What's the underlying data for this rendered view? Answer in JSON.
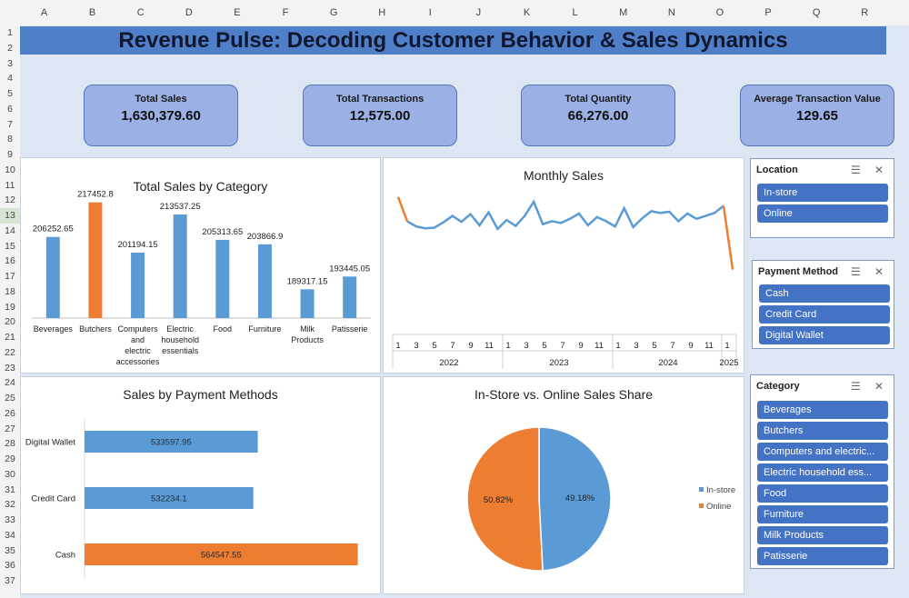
{
  "column_headers": [
    "A",
    "B",
    "C",
    "D",
    "E",
    "F",
    "G",
    "H",
    "I",
    "J",
    "K",
    "L",
    "M",
    "N",
    "O",
    "P",
    "Q",
    "R"
  ],
  "row_headers": [
    "1",
    "2",
    "3",
    "4",
    "5",
    "6",
    "7",
    "8",
    "9",
    "10",
    "11",
    "12",
    "13",
    "14",
    "15",
    "16",
    "17",
    "18",
    "19",
    "20",
    "21",
    "22",
    "23",
    "24",
    "25",
    "26",
    "27",
    "28",
    "29",
    "30",
    "31",
    "32",
    "33",
    "34",
    "35",
    "36",
    "37"
  ],
  "selected_row": "13",
  "dashboard_title": "Revenue Pulse: Decoding Customer Behavior & Sales Dynamics",
  "kpis": [
    {
      "label": "Total Sales",
      "value": "1,630,379.60"
    },
    {
      "label": "Total Transactions",
      "value": "12,575.00"
    },
    {
      "label": "Total Quantity",
      "value": "66,276.00"
    },
    {
      "label": "Average Transaction Value",
      "value": "129.65"
    }
  ],
  "colors": {
    "blue": "#5b9bd5",
    "orange": "#ed7d31",
    "slicer_button": "#4472c4",
    "banner": "#4f7fc8"
  },
  "chart_data": [
    {
      "type": "bar",
      "title": "Total Sales by Category",
      "categories": [
        [
          "Beverages"
        ],
        [
          "Butchers"
        ],
        [
          "Computers",
          "and",
          "electric",
          "accessories"
        ],
        [
          "Electric",
          "household",
          "essentials"
        ],
        [
          "Food"
        ],
        [
          "Furniture"
        ],
        [
          "Milk",
          "Products"
        ],
        [
          "Patisserie"
        ]
      ],
      "values": [
        206252.65,
        217452.8,
        201194.15,
        213537.25,
        205313.65,
        203866.9,
        189317.15,
        193445.05
      ],
      "value_labels": [
        "206252.65",
        "217452.8",
        "201194.15",
        "213537.25",
        "205313.65",
        "203866.9",
        "189317.15",
        "193445.05"
      ],
      "highlight_index": 1,
      "ylim": [
        180000,
        220000
      ]
    },
    {
      "type": "line",
      "title": "Monthly Sales",
      "x_tick_labels": [
        "1",
        "3",
        "5",
        "7",
        "9",
        "11",
        "1",
        "3",
        "5",
        "7",
        "9",
        "11",
        "1",
        "3",
        "5",
        "7",
        "9",
        "11",
        "1"
      ],
      "year_labels": [
        "2022",
        "2023",
        "2024",
        "2025"
      ],
      "values": [
        46500,
        42400,
        41500,
        41200,
        41300,
        42200,
        43300,
        42300,
        43600,
        41700,
        43900,
        41100,
        42600,
        41600,
        43300,
        45700,
        41900,
        42400,
        42100,
        42800,
        43700,
        41700,
        43100,
        42400,
        41500,
        44600,
        41400,
        42900,
        44100,
        43800,
        44000,
        42400,
        43700,
        42800,
        43300,
        43800,
        45000,
        34200
      ],
      "ylim": [
        30000,
        50000
      ]
    },
    {
      "type": "bar",
      "orientation": "horizontal",
      "title": "Sales by Payment Methods",
      "categories": [
        "Digital Wallet",
        "Credit Card",
        "Cash"
      ],
      "values": [
        533597.95,
        532234.1,
        564547.55
      ],
      "value_labels": [
        "533597.95",
        "532234.1",
        "564547.55"
      ],
      "highlight_index": 2,
      "xlim": [
        480000,
        570000
      ]
    },
    {
      "type": "pie",
      "title": "In-Store vs. Online Sales Share",
      "labels": [
        "In-store",
        "Online"
      ],
      "values": [
        49.18,
        50.82
      ],
      "value_labels": [
        "49.18%",
        "50.82%"
      ],
      "legend": "right"
    }
  ],
  "slicers": {
    "location": {
      "title": "Location",
      "items": [
        "In-store",
        "Online"
      ]
    },
    "payment": {
      "title": "Payment Method",
      "items": [
        "Cash",
        "Credit Card",
        "Digital Wallet"
      ]
    },
    "category": {
      "title": "Category",
      "items": [
        "Beverages",
        "Butchers",
        "Computers and electric...",
        "Electric household ess...",
        "Food",
        "Furniture",
        "Milk Products",
        "Patisserie"
      ]
    }
  },
  "icons": {
    "multi_select": "multi-select-icon",
    "clear_filter": "clear-filter-icon"
  }
}
